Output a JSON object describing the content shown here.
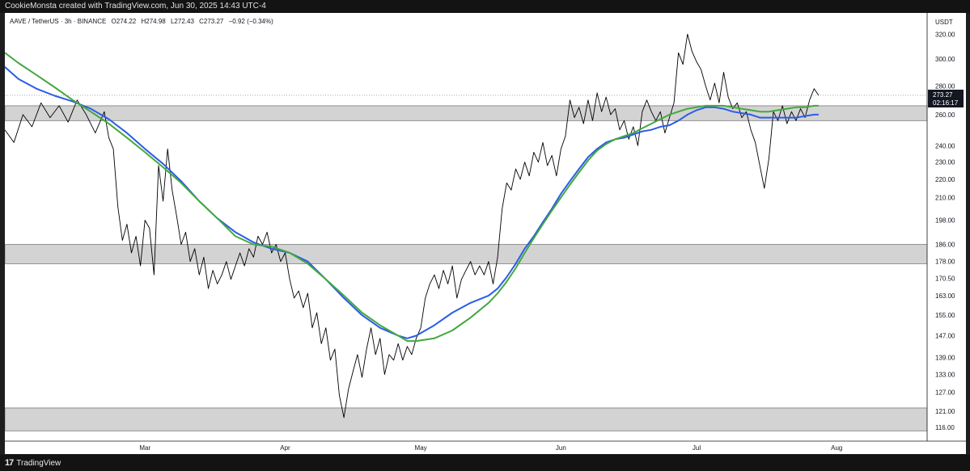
{
  "header": {
    "credit": "CookieMonsta created with TradingView.com, Jun 30, 2025 14:43 UTC-4"
  },
  "footer": {
    "brand": "TradingView",
    "brand_mark": "17"
  },
  "legend": {
    "symbol": "AAVE / TetherUS · 3h · BINANCE",
    "open": "O274.22",
    "high": "H274.98",
    "low": "L272.43",
    "close": "C273.27",
    "change": "−0.92 (−0.34%)"
  },
  "price_tag": {
    "price": "273.27",
    "countdown": "02:16:17",
    "color": "#131722"
  },
  "colors": {
    "price_line": "#000000",
    "ma_fast": "#2b5ce6",
    "ma_slow": "#43a83f",
    "zone_fill": "#d3d3d3",
    "zone_border": "#7a7a7a"
  },
  "chart_data": {
    "type": "line",
    "currency_label": "USDT",
    "y_ticks": [
      116,
      121,
      127,
      133,
      139,
      147,
      155,
      163,
      170.5,
      178,
      186,
      198,
      210,
      220,
      230,
      240,
      260,
      280,
      300,
      320
    ],
    "y_tick_labels": [
      "116.00",
      "121.00",
      "127.00",
      "133.00",
      "139.00",
      "147.00",
      "155.00",
      "163.00",
      "170.50",
      "178.00",
      "186.00",
      "198.00",
      "210.00",
      "220.00",
      "230.00",
      "240.00",
      "260.00",
      "280.00",
      "300.00",
      "320.00"
    ],
    "x_ticks": [
      {
        "label": "Mar",
        "day": 28
      },
      {
        "label": "Apr",
        "day": 59
      },
      {
        "label": "May",
        "day": 89
      },
      {
        "label": "Jun",
        "day": 120
      },
      {
        "label": "Jul",
        "day": 150
      },
      {
        "label": "Aug",
        "day": 181
      }
    ],
    "x_range": [
      -3,
      201
    ],
    "y_range": [
      112,
      338
    ],
    "log_scale": true,
    "grid": false,
    "current_price": 273.27,
    "zones": [
      {
        "low": 256,
        "high": 266
      },
      {
        "low": 177,
        "high": 186
      },
      {
        "low": 115,
        "high": 122
      }
    ],
    "series": [
      {
        "key": "price",
        "points": [
          [
            -3,
            250
          ],
          [
            -1,
            242
          ],
          [
            1,
            260
          ],
          [
            3,
            252
          ],
          [
            5,
            268
          ],
          [
            7,
            258
          ],
          [
            9,
            266
          ],
          [
            11,
            255
          ],
          [
            13,
            270
          ],
          [
            15,
            260
          ],
          [
            17,
            248
          ],
          [
            19,
            262
          ],
          [
            20,
            245
          ],
          [
            21,
            238
          ],
          [
            22,
            205
          ],
          [
            23,
            188
          ],
          [
            24,
            196
          ],
          [
            25,
            182
          ],
          [
            26,
            190
          ],
          [
            27,
            176
          ],
          [
            28,
            198
          ],
          [
            29,
            194
          ],
          [
            30,
            172
          ],
          [
            31,
            228
          ],
          [
            32,
            208
          ],
          [
            33,
            238
          ],
          [
            34,
            214
          ],
          [
            35,
            200
          ],
          [
            36,
            186
          ],
          [
            37,
            192
          ],
          [
            38,
            178
          ],
          [
            39,
            184
          ],
          [
            40,
            172
          ],
          [
            41,
            180
          ],
          [
            42,
            166
          ],
          [
            43,
            174
          ],
          [
            44,
            168
          ],
          [
            45,
            172
          ],
          [
            46,
            178
          ],
          [
            47,
            170
          ],
          [
            48,
            176
          ],
          [
            49,
            182
          ],
          [
            50,
            176
          ],
          [
            51,
            184
          ],
          [
            52,
            180
          ],
          [
            53,
            190
          ],
          [
            54,
            186
          ],
          [
            55,
            192
          ],
          [
            56,
            182
          ],
          [
            57,
            186
          ],
          [
            58,
            178
          ],
          [
            59,
            182
          ],
          [
            60,
            170
          ],
          [
            61,
            162
          ],
          [
            62,
            165
          ],
          [
            63,
            158
          ],
          [
            64,
            164
          ],
          [
            65,
            150
          ],
          [
            66,
            156
          ],
          [
            67,
            144
          ],
          [
            68,
            150
          ],
          [
            69,
            138
          ],
          [
            70,
            142
          ],
          [
            71,
            126
          ],
          [
            72,
            119
          ],
          [
            73,
            128
          ],
          [
            74,
            134
          ],
          [
            75,
            140
          ],
          [
            76,
            132
          ],
          [
            77,
            142
          ],
          [
            78,
            150
          ],
          [
            79,
            140
          ],
          [
            80,
            146
          ],
          [
            81,
            133
          ],
          [
            82,
            140
          ],
          [
            83,
            138
          ],
          [
            84,
            144
          ],
          [
            85,
            138
          ],
          [
            86,
            143
          ],
          [
            87,
            140
          ],
          [
            88,
            146
          ],
          [
            89,
            150
          ],
          [
            90,
            162
          ],
          [
            91,
            168
          ],
          [
            92,
            172
          ],
          [
            93,
            166
          ],
          [
            94,
            174
          ],
          [
            95,
            168
          ],
          [
            96,
            176
          ],
          [
            97,
            162
          ],
          [
            98,
            170
          ],
          [
            99,
            174
          ],
          [
            100,
            178
          ],
          [
            101,
            172
          ],
          [
            102,
            176
          ],
          [
            103,
            172
          ],
          [
            104,
            178
          ],
          [
            105,
            168
          ],
          [
            106,
            180
          ],
          [
            107,
            204
          ],
          [
            108,
            218
          ],
          [
            109,
            214
          ],
          [
            110,
            226
          ],
          [
            111,
            220
          ],
          [
            112,
            230
          ],
          [
            113,
            222
          ],
          [
            114,
            236
          ],
          [
            115,
            230
          ],
          [
            116,
            242
          ],
          [
            117,
            228
          ],
          [
            118,
            234
          ],
          [
            119,
            222
          ],
          [
            120,
            238
          ],
          [
            121,
            246
          ],
          [
            122,
            270
          ],
          [
            123,
            258
          ],
          [
            124,
            265
          ],
          [
            125,
            254
          ],
          [
            126,
            270
          ],
          [
            127,
            256
          ],
          [
            128,
            275
          ],
          [
            129,
            262
          ],
          [
            130,
            272
          ],
          [
            131,
            260
          ],
          [
            132,
            264
          ],
          [
            133,
            250
          ],
          [
            134,
            256
          ],
          [
            135,
            244
          ],
          [
            136,
            252
          ],
          [
            137,
            240
          ],
          [
            138,
            262
          ],
          [
            139,
            270
          ],
          [
            140,
            262
          ],
          [
            141,
            256
          ],
          [
            142,
            262
          ],
          [
            143,
            248
          ],
          [
            144,
            258
          ],
          [
            145,
            268
          ],
          [
            146,
            305
          ],
          [
            147,
            296
          ],
          [
            148,
            320
          ],
          [
            149,
            306
          ],
          [
            150,
            298
          ],
          [
            151,
            292
          ],
          [
            152,
            280
          ],
          [
            153,
            270
          ],
          [
            154,
            282
          ],
          [
            155,
            268
          ],
          [
            156,
            290
          ],
          [
            157,
            272
          ],
          [
            158,
            264
          ],
          [
            159,
            268
          ],
          [
            160,
            258
          ],
          [
            161,
            262
          ],
          [
            162,
            250
          ],
          [
            163,
            242
          ],
          [
            164,
            228
          ],
          [
            165,
            215
          ],
          [
            166,
            232
          ],
          [
            167,
            262
          ],
          [
            168,
            256
          ],
          [
            169,
            266
          ],
          [
            170,
            254
          ],
          [
            171,
            262
          ],
          [
            172,
            256
          ],
          [
            173,
            264
          ],
          [
            174,
            258
          ],
          [
            175,
            270
          ],
          [
            176,
            278
          ],
          [
            177,
            273.27
          ]
        ]
      },
      {
        "key": "ma_fast",
        "points": [
          [
            -3,
            294
          ],
          [
            0,
            285
          ],
          [
            4,
            278
          ],
          [
            8,
            273
          ],
          [
            12,
            269
          ],
          [
            16,
            264
          ],
          [
            20,
            257
          ],
          [
            24,
            248
          ],
          [
            28,
            238
          ],
          [
            32,
            229
          ],
          [
            36,
            219
          ],
          [
            40,
            208
          ],
          [
            44,
            199
          ],
          [
            48,
            192
          ],
          [
            52,
            187
          ],
          [
            56,
            184
          ],
          [
            60,
            182
          ],
          [
            64,
            178
          ],
          [
            68,
            170
          ],
          [
            72,
            162
          ],
          [
            76,
            155
          ],
          [
            80,
            150
          ],
          [
            84,
            147
          ],
          [
            86,
            146
          ],
          [
            88,
            147
          ],
          [
            92,
            151
          ],
          [
            96,
            156
          ],
          [
            100,
            160
          ],
          [
            104,
            163
          ],
          [
            106,
            166
          ],
          [
            108,
            171
          ],
          [
            110,
            177
          ],
          [
            112,
            184
          ],
          [
            114,
            190
          ],
          [
            116,
            197
          ],
          [
            118,
            204
          ],
          [
            120,
            212
          ],
          [
            122,
            219
          ],
          [
            124,
            226
          ],
          [
            126,
            233
          ],
          [
            128,
            238
          ],
          [
            130,
            242
          ],
          [
            132,
            244
          ],
          [
            134,
            245
          ],
          [
            136,
            247
          ],
          [
            138,
            249
          ],
          [
            140,
            250
          ],
          [
            142,
            252
          ],
          [
            144,
            253
          ],
          [
            146,
            256
          ],
          [
            148,
            260
          ],
          [
            150,
            263
          ],
          [
            152,
            265
          ],
          [
            154,
            265
          ],
          [
            156,
            264
          ],
          [
            158,
            262
          ],
          [
            160,
            261
          ],
          [
            162,
            260
          ],
          [
            164,
            258
          ],
          [
            166,
            258
          ],
          [
            168,
            258
          ],
          [
            170,
            258
          ],
          [
            172,
            258
          ],
          [
            174,
            259
          ],
          [
            176,
            260
          ],
          [
            177,
            260
          ]
        ]
      },
      {
        "key": "ma_slow",
        "points": [
          [
            -3,
            305
          ],
          [
            0,
            297
          ],
          [
            4,
            288
          ],
          [
            8,
            279
          ],
          [
            12,
            270
          ],
          [
            16,
            262
          ],
          [
            20,
            254
          ],
          [
            24,
            245
          ],
          [
            28,
            236
          ],
          [
            32,
            227
          ],
          [
            36,
            218
          ],
          [
            40,
            208
          ],
          [
            44,
            199
          ],
          [
            48,
            190
          ],
          [
            52,
            186
          ],
          [
            56,
            185
          ],
          [
            60,
            182
          ],
          [
            64,
            177
          ],
          [
            68,
            170
          ],
          [
            72,
            163
          ],
          [
            76,
            156
          ],
          [
            80,
            151
          ],
          [
            84,
            147
          ],
          [
            86,
            145
          ],
          [
            88,
            145
          ],
          [
            92,
            146
          ],
          [
            96,
            149
          ],
          [
            100,
            154
          ],
          [
            104,
            160
          ],
          [
            106,
            164
          ],
          [
            108,
            169
          ],
          [
            110,
            175
          ],
          [
            112,
            182
          ],
          [
            114,
            189
          ],
          [
            116,
            196
          ],
          [
            118,
            203
          ],
          [
            120,
            210
          ],
          [
            122,
            217
          ],
          [
            124,
            224
          ],
          [
            126,
            231
          ],
          [
            128,
            237
          ],
          [
            130,
            241
          ],
          [
            132,
            244
          ],
          [
            134,
            246
          ],
          [
            136,
            248
          ],
          [
            138,
            251
          ],
          [
            140,
            254
          ],
          [
            142,
            257
          ],
          [
            144,
            260
          ],
          [
            146,
            262
          ],
          [
            148,
            264
          ],
          [
            150,
            265
          ],
          [
            152,
            266
          ],
          [
            154,
            266
          ],
          [
            156,
            266
          ],
          [
            158,
            265
          ],
          [
            160,
            264
          ],
          [
            162,
            263
          ],
          [
            164,
            262
          ],
          [
            166,
            262
          ],
          [
            168,
            263
          ],
          [
            170,
            264
          ],
          [
            172,
            265
          ],
          [
            174,
            265
          ],
          [
            176,
            266
          ],
          [
            177,
            266
          ]
        ]
      }
    ]
  }
}
